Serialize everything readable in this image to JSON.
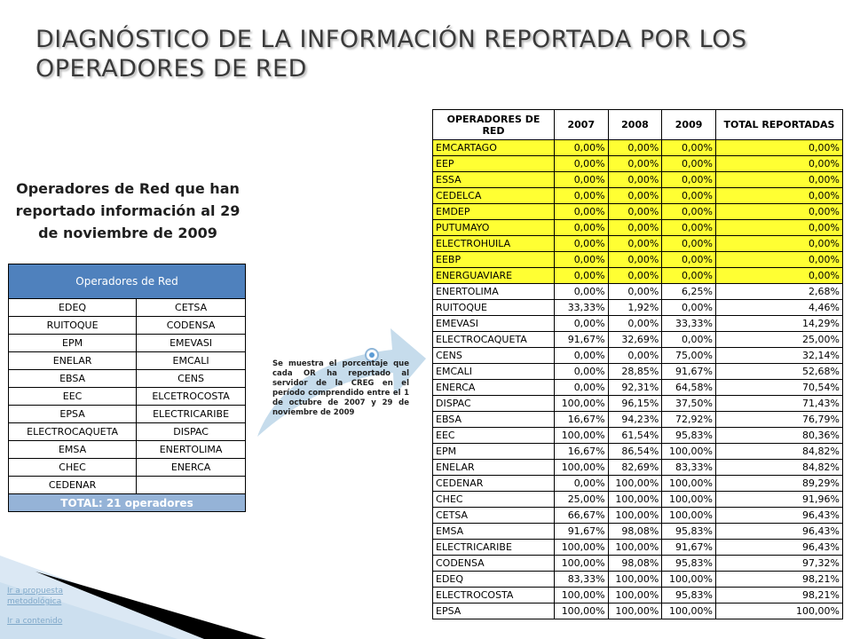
{
  "title": "DIAGNÓSTICO DE LA INFORMACIÓN REPORTADA POR LOS OPERADORES DE RED",
  "subtitle": "Operadores de Red que han reportado información al 29 de noviembre de 2009",
  "left_table": {
    "header": "Operadores de Red",
    "rows": [
      [
        "EDEQ",
        "CETSA"
      ],
      [
        "RUITOQUE",
        "CODENSA"
      ],
      [
        "EPM",
        "EMEVASI"
      ],
      [
        "ENELAR",
        "EMCALI"
      ],
      [
        "EBSA",
        "CENS"
      ],
      [
        "EEC",
        "ELCETROCOSTA"
      ],
      [
        "EPSA",
        "ELECTRICARIBE"
      ],
      [
        "ELECTROCAQUETA",
        "DISPAC"
      ],
      [
        "EMSA",
        "ENERTOLIMA"
      ],
      [
        "CHEC",
        "ENERCA"
      ],
      [
        "CEDENAR",
        ""
      ]
    ],
    "footer": "TOTAL: 21 operadores"
  },
  "note": "Se muestra el porcentaje que cada OR ha reportado al servidor de la CREG en el período comprendido entre el 1 de octubre de 2007 y 29 de noviembre de 2009",
  "right_table": {
    "headers": [
      "OPERADORES DE RED",
      "2007",
      "2008",
      "2009",
      "TOTAL REPORTADAS"
    ],
    "highlight_color": "#ffff33",
    "rows": [
      {
        "cells": [
          "EMCARTAGO",
          "0,00%",
          "0,00%",
          "0,00%",
          "0,00%"
        ],
        "highlight": true
      },
      {
        "cells": [
          "EEP",
          "0,00%",
          "0,00%",
          "0,00%",
          "0,00%"
        ],
        "highlight": true
      },
      {
        "cells": [
          "ESSA",
          "0,00%",
          "0,00%",
          "0,00%",
          "0,00%"
        ],
        "highlight": true
      },
      {
        "cells": [
          "CEDELCA",
          "0,00%",
          "0,00%",
          "0,00%",
          "0,00%"
        ],
        "highlight": true
      },
      {
        "cells": [
          "EMDEP",
          "0,00%",
          "0,00%",
          "0,00%",
          "0,00%"
        ],
        "highlight": true
      },
      {
        "cells": [
          "PUTUMAYO",
          "0,00%",
          "0,00%",
          "0,00%",
          "0,00%"
        ],
        "highlight": true
      },
      {
        "cells": [
          "ELECTROHUILA",
          "0,00%",
          "0,00%",
          "0,00%",
          "0,00%"
        ],
        "highlight": true
      },
      {
        "cells": [
          "EEBP",
          "0,00%",
          "0,00%",
          "0,00%",
          "0,00%"
        ],
        "highlight": true
      },
      {
        "cells": [
          "ENERGUAVIARE",
          "0,00%",
          "0,00%",
          "0,00%",
          "0,00%"
        ],
        "highlight": true
      },
      {
        "cells": [
          "ENERTOLIMA",
          "0,00%",
          "0,00%",
          "6,25%",
          "2,68%"
        ],
        "highlight": false
      },
      {
        "cells": [
          "RUITOQUE",
          "33,33%",
          "1,92%",
          "0,00%",
          "4,46%"
        ],
        "highlight": false
      },
      {
        "cells": [
          "EMEVASI",
          "0,00%",
          "0,00%",
          "33,33%",
          "14,29%"
        ],
        "highlight": false
      },
      {
        "cells": [
          "ELECTROCAQUETA",
          "91,67%",
          "32,69%",
          "0,00%",
          "25,00%"
        ],
        "highlight": false
      },
      {
        "cells": [
          "CENS",
          "0,00%",
          "0,00%",
          "75,00%",
          "32,14%"
        ],
        "highlight": false
      },
      {
        "cells": [
          "EMCALI",
          "0,00%",
          "28,85%",
          "91,67%",
          "52,68%"
        ],
        "highlight": false
      },
      {
        "cells": [
          "ENERCA",
          "0,00%",
          "92,31%",
          "64,58%",
          "70,54%"
        ],
        "highlight": false
      },
      {
        "cells": [
          "DISPAC",
          "100,00%",
          "96,15%",
          "37,50%",
          "71,43%"
        ],
        "highlight": false
      },
      {
        "cells": [
          "EBSA",
          "16,67%",
          "94,23%",
          "72,92%",
          "76,79%"
        ],
        "highlight": false
      },
      {
        "cells": [
          "EEC",
          "100,00%",
          "61,54%",
          "95,83%",
          "80,36%"
        ],
        "highlight": false
      },
      {
        "cells": [
          "EPM",
          "16,67%",
          "86,54%",
          "100,00%",
          "84,82%"
        ],
        "highlight": false
      },
      {
        "cells": [
          "ENELAR",
          "100,00%",
          "82,69%",
          "83,33%",
          "84,82%"
        ],
        "highlight": false
      },
      {
        "cells": [
          "CEDENAR",
          "0,00%",
          "100,00%",
          "100,00%",
          "89,29%"
        ],
        "highlight": false
      },
      {
        "cells": [
          "CHEC",
          "25,00%",
          "100,00%",
          "100,00%",
          "91,96%"
        ],
        "highlight": false
      },
      {
        "cells": [
          "CETSA",
          "66,67%",
          "100,00%",
          "100,00%",
          "96,43%"
        ],
        "highlight": false
      },
      {
        "cells": [
          "EMSA",
          "91,67%",
          "98,08%",
          "95,83%",
          "96,43%"
        ],
        "highlight": false
      },
      {
        "cells": [
          "ELECTRICARIBE",
          "100,00%",
          "100,00%",
          "91,67%",
          "96,43%"
        ],
        "highlight": false
      },
      {
        "cells": [
          "CODENSA",
          "100,00%",
          "98,08%",
          "95,83%",
          "97,32%"
        ],
        "highlight": false
      },
      {
        "cells": [
          "EDEQ",
          "83,33%",
          "100,00%",
          "100,00%",
          "98,21%"
        ],
        "highlight": false
      },
      {
        "cells": [
          "ELECTROCOSTA",
          "100,00%",
          "100,00%",
          "95,83%",
          "98,21%"
        ],
        "highlight": false
      },
      {
        "cells": [
          "EPSA",
          "100,00%",
          "100,00%",
          "100,00%",
          "100,00%"
        ],
        "highlight": false
      }
    ]
  },
  "links": {
    "propuesta": "Ir a propuesta metodológica",
    "contenido": "Ir a contenido"
  },
  "colors": {
    "left_header": "#4f81bd",
    "left_footer": "#95b3d7",
    "arrow": "#c6dcec",
    "title": "#3a3a3a"
  },
  "icons": {
    "bullet": "radio-bullet-icon",
    "arrow": "curved-arrow-icon"
  }
}
